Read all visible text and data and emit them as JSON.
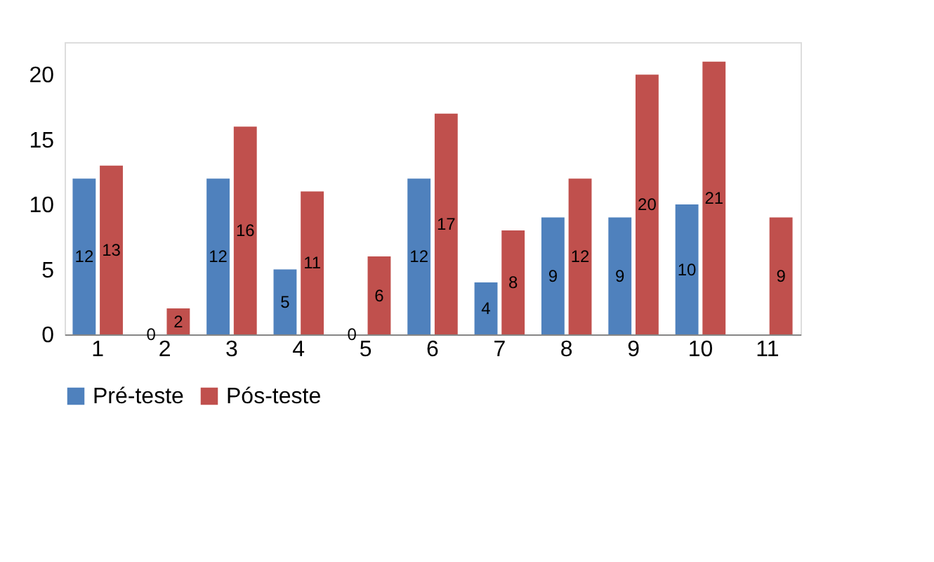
{
  "chart_data": {
    "type": "bar",
    "categories": [
      "1",
      "2",
      "3",
      "4",
      "5",
      "6",
      "7",
      "8",
      "9",
      "10",
      "11"
    ],
    "series": [
      {
        "name": "Pré-teste",
        "color": "#4f81bd",
        "values": [
          12,
          0,
          12,
          5,
          0,
          12,
          4,
          9,
          9,
          10,
          null
        ]
      },
      {
        "name": "Pós-teste",
        "color": "#c0504d",
        "values": [
          13,
          2,
          16,
          11,
          6,
          17,
          8,
          12,
          20,
          21,
          9
        ]
      }
    ],
    "ylim": [
      0,
      22.5
    ],
    "yticks": [
      0,
      5,
      10,
      15,
      20
    ],
    "grid": false,
    "legend": "bottom",
    "data_labels": true
  }
}
